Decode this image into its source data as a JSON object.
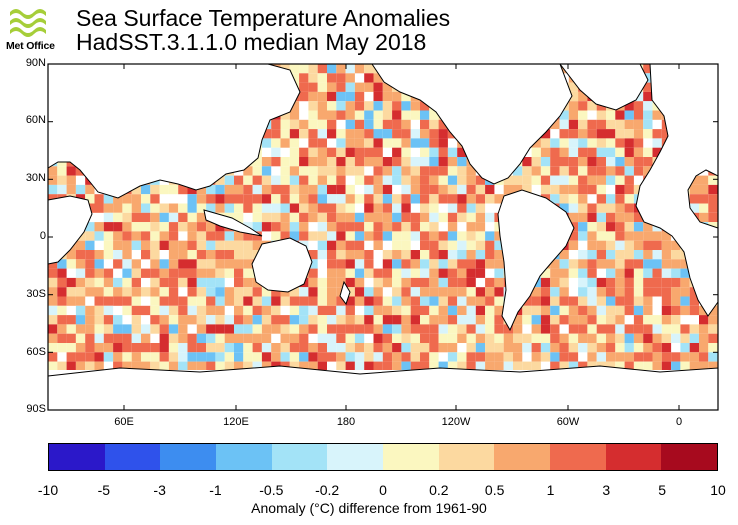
{
  "header": {
    "logo_label": "Met Office",
    "title_line1": "Sea Surface Temperature Anomalies",
    "title_line2": "HadSST.3.1.1.0 median May 2018"
  },
  "map": {
    "lat_labels": [
      "90N",
      "60N",
      "30N",
      "0",
      "30S",
      "60S",
      "90S"
    ],
    "lon_labels": [
      "60E",
      "120E",
      "180",
      "120W",
      "60W",
      "0"
    ],
    "land_color": "#ffffff",
    "no_data_color": "#ffffff"
  },
  "colorbar": {
    "ticks": [
      "-10",
      "-5",
      "-3",
      "-1",
      "-0.5",
      "-0.2",
      "0",
      "0.2",
      "0.5",
      "1",
      "3",
      "5",
      "10"
    ],
    "colors": [
      "#2b18c9",
      "#2f52eb",
      "#3d8df0",
      "#6cc2f5",
      "#a3e3f7",
      "#d8f4fb",
      "#fbf7c0",
      "#fcd9a0",
      "#f8a86e",
      "#ef6a4e",
      "#d52d2f",
      "#a70a1e"
    ],
    "caption": "Anomaly (°C) difference from 1961-90"
  }
}
